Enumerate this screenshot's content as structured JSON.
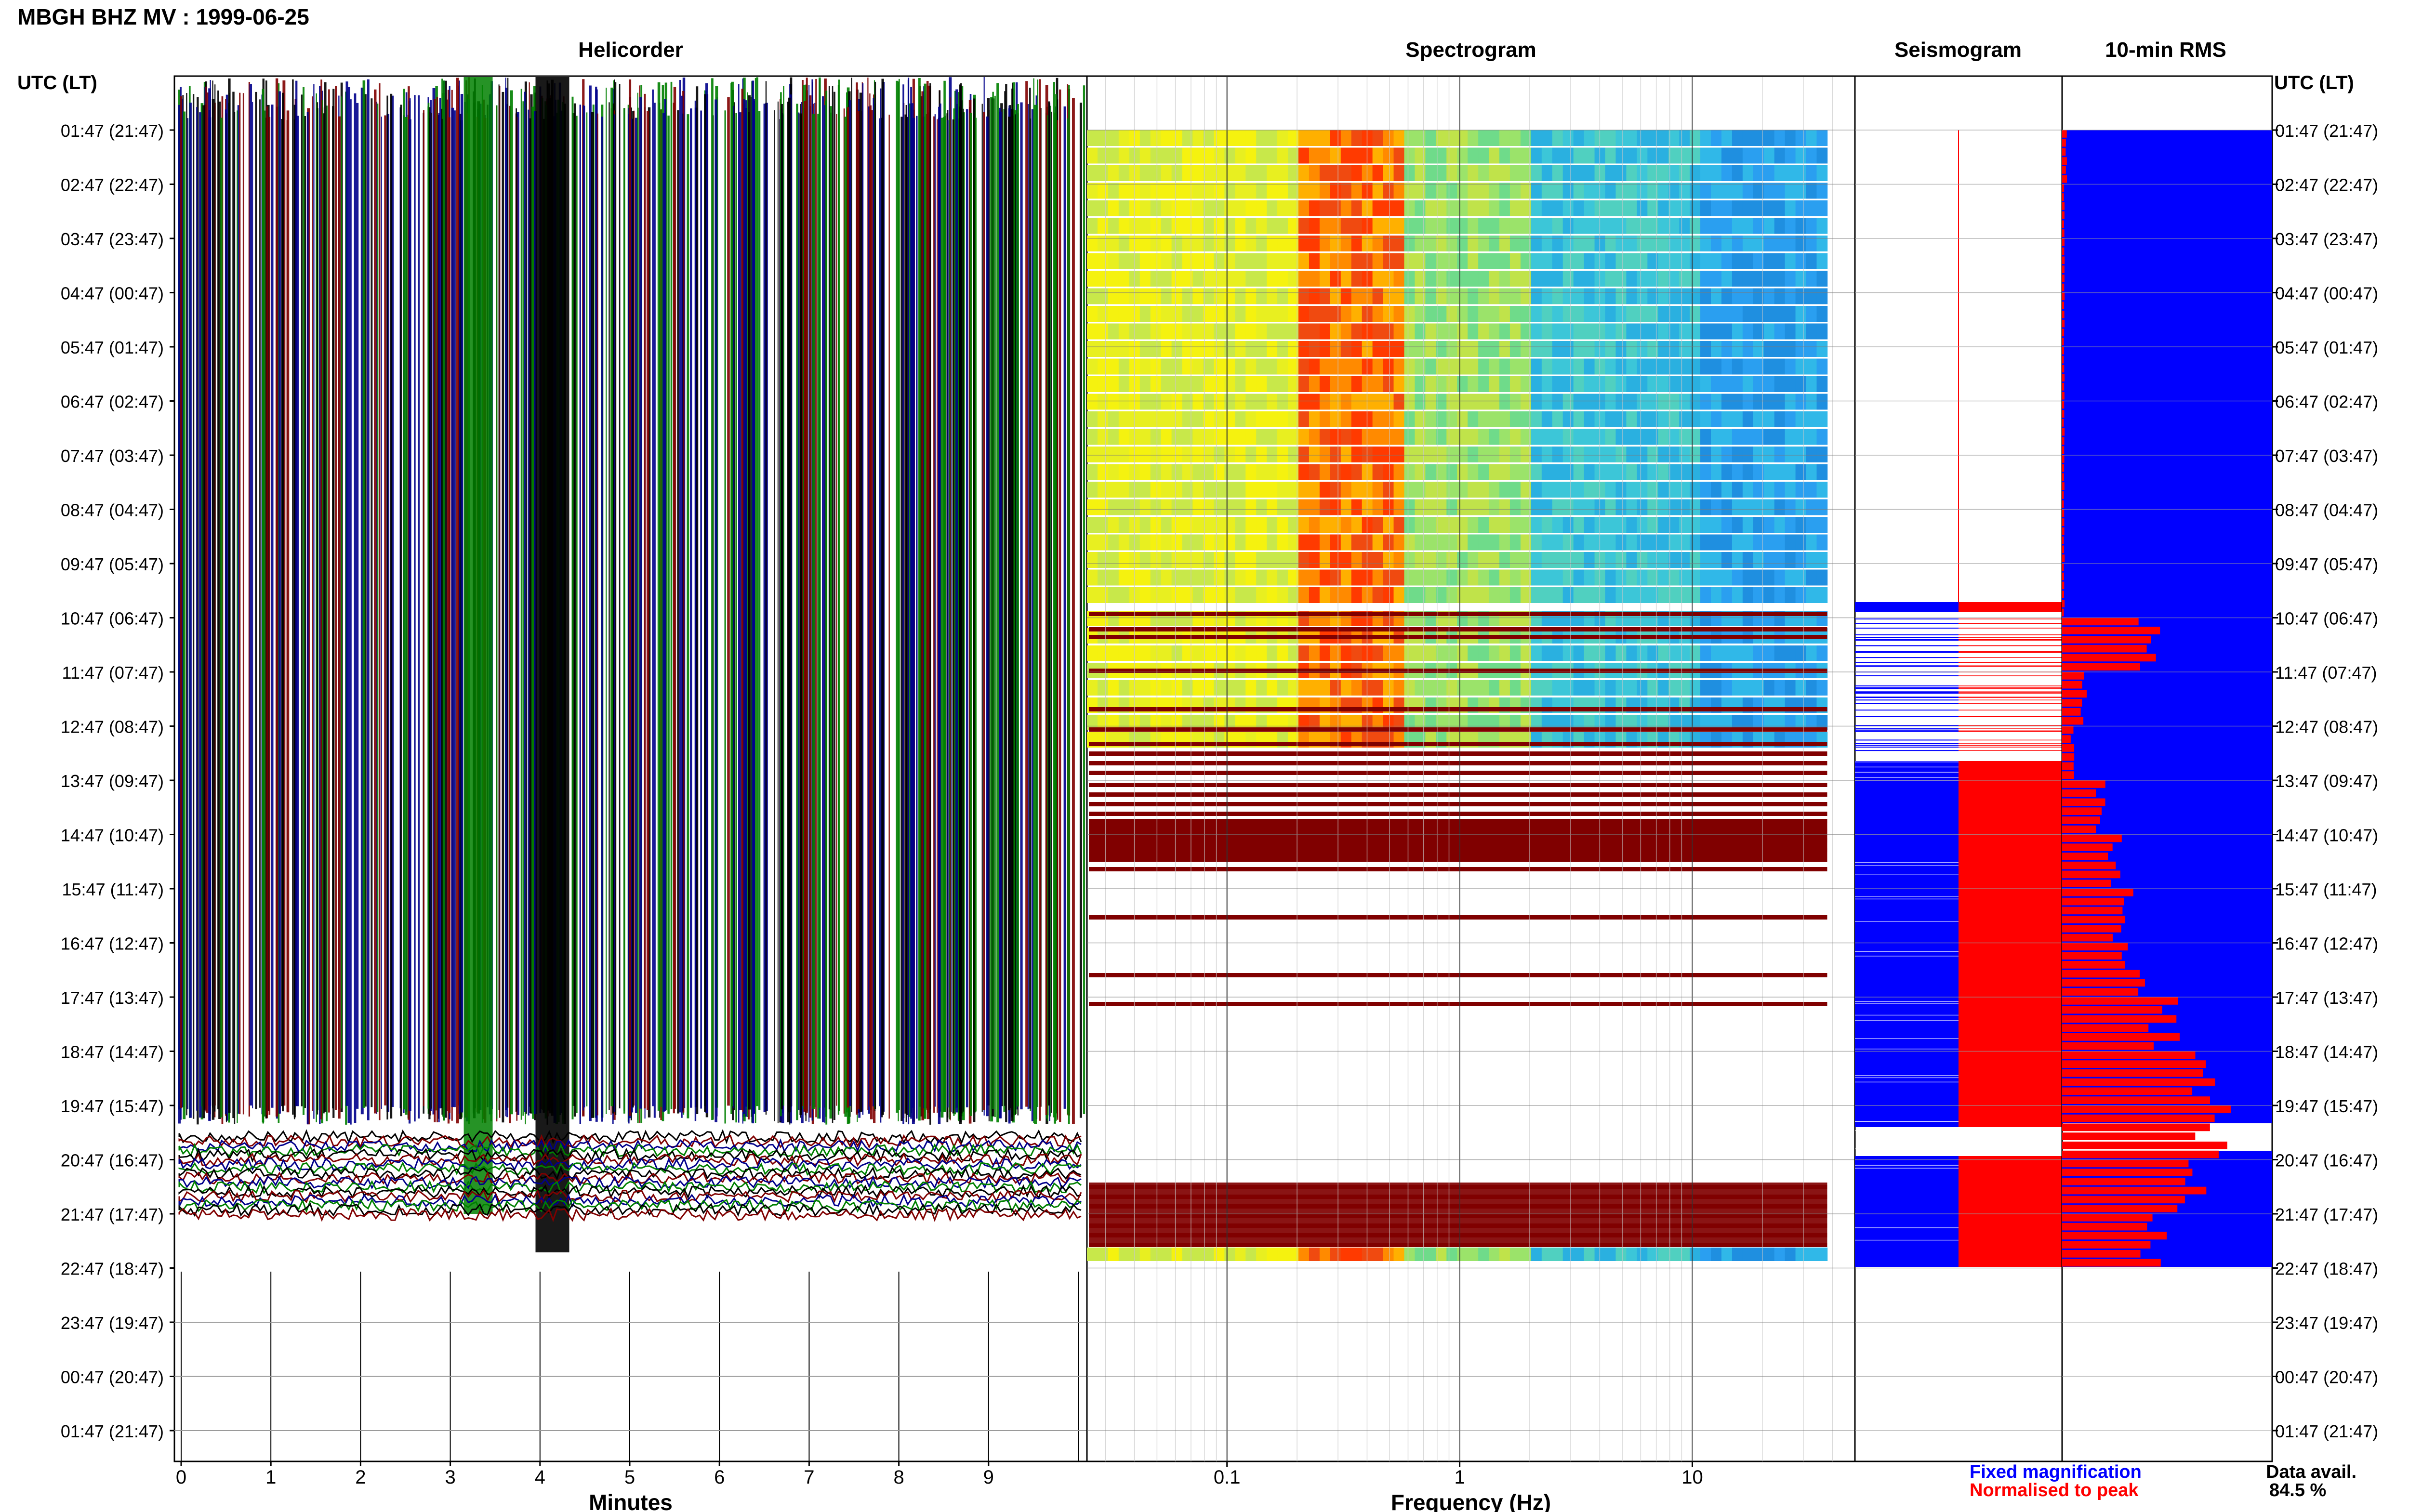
{
  "header": {
    "title": "MBGH BHZ MV : 1999-06-25"
  },
  "panels": {
    "helicorder": "Helicorder",
    "spectrogram": "Spectrogram",
    "seismogram": "Seismogram",
    "rms": "10-min RMS"
  },
  "time_axis": {
    "label_left": "UTC (LT)",
    "label_right": "UTC (LT)",
    "ticks": [
      "01:47 (21:47)",
      "02:47 (22:47)",
      "03:47 (23:47)",
      "04:47 (00:47)",
      "05:47 (01:47)",
      "06:47 (02:47)",
      "07:47 (03:47)",
      "08:47 (04:47)",
      "09:47 (05:47)",
      "10:47 (06:47)",
      "11:47 (07:47)",
      "12:47 (08:47)",
      "13:47 (09:47)",
      "14:47 (10:47)",
      "15:47 (11:47)",
      "16:47 (12:47)",
      "17:47 (13:47)",
      "18:47 (14:47)",
      "19:47 (15:47)",
      "20:47 (16:47)",
      "21:47 (17:47)",
      "22:47 (18:47)",
      "23:47 (19:47)",
      "00:47 (20:47)",
      "01:47 (21:47)"
    ]
  },
  "legend": {
    "fixed": "Fixed magnification",
    "normalised": "Normalised to peak",
    "fixed_color": "#0000ff",
    "normalised_color": "#ff0000"
  },
  "data_avail": {
    "label": "Data avail.",
    "value": "84.5 %"
  },
  "colors": {
    "trace_1": "#000000",
    "trace_2": "#800000",
    "trace_3": "#00008b",
    "trace_4": "#008000",
    "spectro_low": "#1f9fe0",
    "spectro_high": "#ff2a00",
    "gap_band": "#800000"
  },
  "chart_data": [
    {
      "type": "line",
      "title": "Helicorder",
      "xlabel": "Minutes",
      "x_ticks": [
        "0",
        "1",
        "2",
        "3",
        "4",
        "5",
        "6",
        "7",
        "8",
        "9"
      ],
      "xlim": [
        0,
        10
      ],
      "data_extent_rows": [
        0,
        21
      ]
    },
    {
      "type": "heatmap",
      "title": "Spectrogram",
      "xlabel": "Frequency (Hz)",
      "x_scale": "log",
      "x_ticks": [
        "0.1",
        "1",
        "10"
      ],
      "xlim": [
        0.025,
        50
      ],
      "rows_with_data": [
        0,
        21
      ]
    },
    {
      "type": "bar",
      "title": "10-min RMS",
      "series": [
        {
          "name": "Fixed magnification",
          "color": "#0000ff"
        },
        {
          "name": "Normalised to peak",
          "color": "#ff0000"
        }
      ],
      "rms_hourly_relative": [
        0.02,
        0.01,
        0.01,
        0.01,
        0.01,
        0.01,
        0.01,
        0.01,
        0.01,
        0.4,
        0.1,
        0.05,
        0.2,
        0.25,
        0.3,
        0.35,
        0.5,
        0.65,
        0.7,
        0.6,
        0.45,
        0.2
      ]
    }
  ]
}
